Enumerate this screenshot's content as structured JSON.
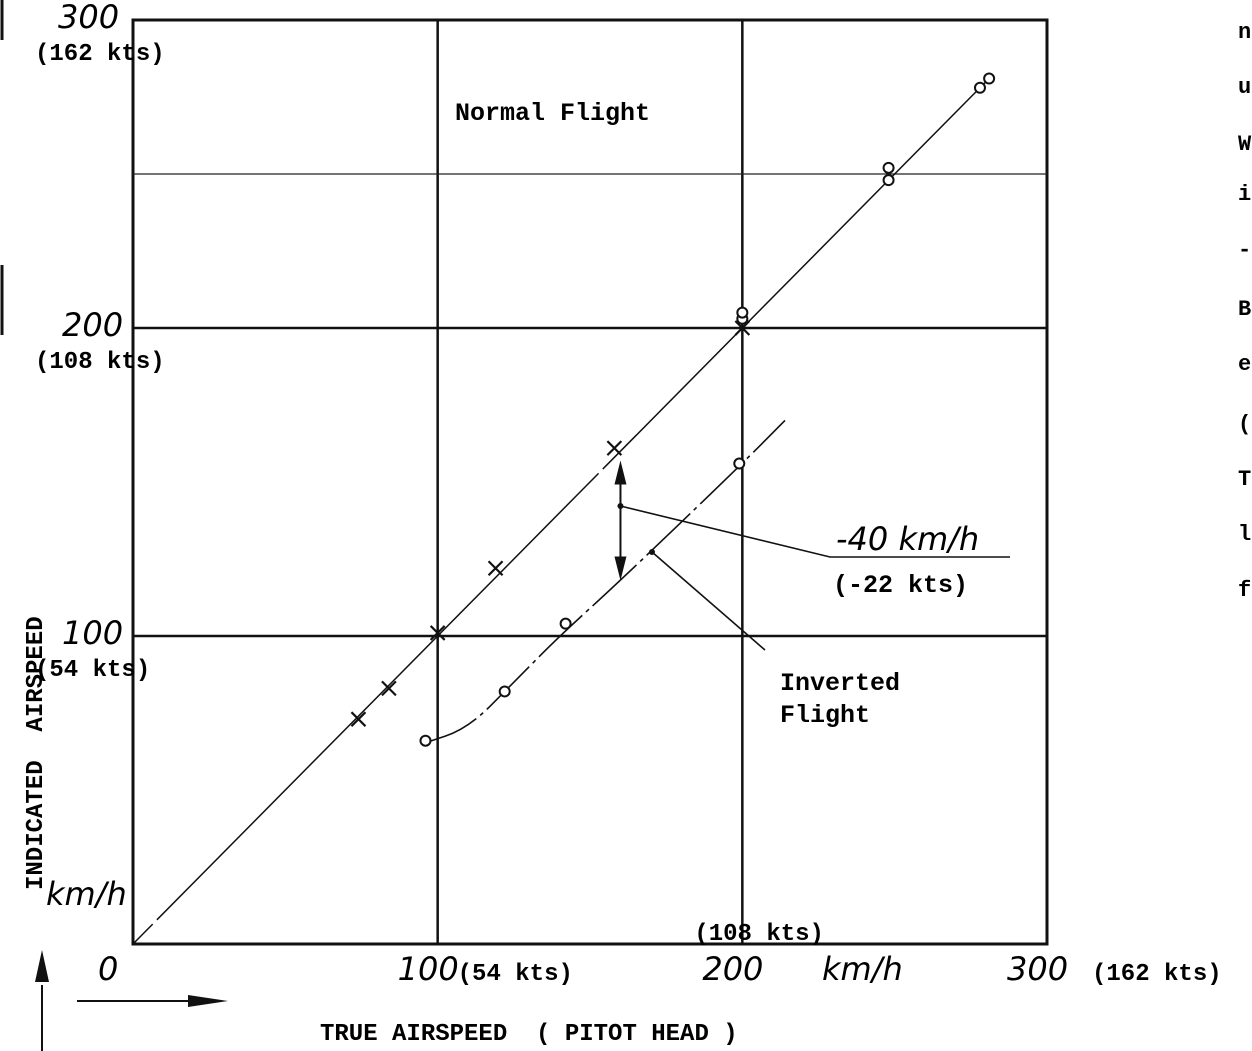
{
  "chart_data": {
    "type": "scatter",
    "xlabel": "TRUE AIRSPEED  ( PITOT HEAD )",
    "ylabel": "INDICATED  AIRSPEED",
    "x_unit": "km/h",
    "y_unit": "km/h",
    "xlim": [
      0,
      300
    ],
    "ylim": [
      0,
      300
    ],
    "grid": true,
    "x_ticks": [
      {
        "value": 0,
        "label": "0",
        "kts": ""
      },
      {
        "value": 100,
        "label": "100",
        "kts": "(54 kts)"
      },
      {
        "value": 200,
        "label": "200",
        "kts": "(108 kts)"
      },
      {
        "value": 300,
        "label": "300",
        "kts": "(162 kts)"
      }
    ],
    "y_ticks": [
      {
        "value": 100,
        "label": "100",
        "kts": "(54 kts)"
      },
      {
        "value": 200,
        "label": "200",
        "kts": "(108 kts)"
      },
      {
        "value": 300,
        "label": "300",
        "kts": "(162 kts)"
      }
    ],
    "extra_hgrid": [
      250
    ],
    "series": [
      {
        "name": "Normal Flight",
        "marker": "x",
        "points": [
          [
            74,
            73
          ],
          [
            84,
            83
          ],
          [
            100,
            101
          ],
          [
            119,
            122
          ],
          [
            158,
            161
          ],
          [
            200,
            200
          ]
        ],
        "fit": [
          [
            0,
            0
          ],
          [
            280,
            280
          ]
        ]
      },
      {
        "name": "Normal Flight",
        "marker": "o",
        "points": [
          [
            200,
            203
          ],
          [
            200,
            205
          ],
          [
            248,
            248
          ],
          [
            248,
            252
          ],
          [
            278,
            278
          ],
          [
            281,
            281
          ]
        ],
        "fit": []
      },
      {
        "name": "Inverted Flight",
        "marker": "o",
        "points": [
          [
            96,
            66
          ],
          [
            122,
            82
          ],
          [
            142,
            104
          ],
          [
            199,
            156
          ]
        ],
        "fit": [
          [
            95,
            65
          ],
          [
            110,
            70
          ],
          [
            125,
            85
          ],
          [
            140,
            100
          ],
          [
            160,
            118
          ],
          [
            200,
            156
          ],
          [
            214,
            170
          ]
        ]
      }
    ],
    "annotations": [
      {
        "text": "Normal Flight",
        "x": 105,
        "y": 270
      },
      {
        "text": "Inverted Flight",
        "x": 212,
        "y": 80
      },
      {
        "text": "-40 km/h",
        "sub": "(-22 kts)"
      }
    ]
  }
}
